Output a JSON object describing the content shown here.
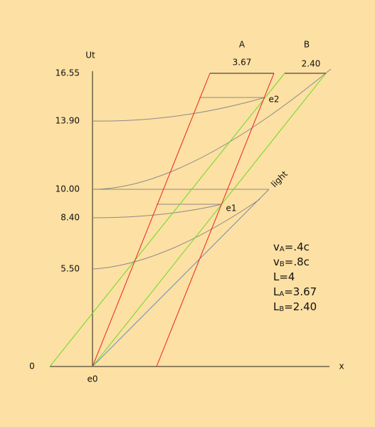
{
  "axes": {
    "y_label": "Ut",
    "x_label": "x",
    "origin": "0",
    "origin_event": "e0",
    "ticks": [
      "16.55",
      "13.90",
      "10.00",
      "8.40",
      "5.50"
    ]
  },
  "frames": [
    {
      "name": "A",
      "length": "3.67"
    },
    {
      "name": "B",
      "length": "2.40"
    }
  ],
  "light": "light",
  "events": [
    "e1",
    "e2"
  ],
  "notes": [
    {
      "var": "v",
      "sub": "A",
      "rest": "=.4c"
    },
    {
      "var": "v",
      "sub": "B",
      "rest": "=.8c"
    },
    {
      "var": "L",
      "sub": "",
      "rest": "=4"
    },
    {
      "var": "L",
      "sub": "A",
      "rest": "=3.67"
    },
    {
      "var": "L",
      "sub": "B",
      "rest": "=2.40"
    }
  ]
}
